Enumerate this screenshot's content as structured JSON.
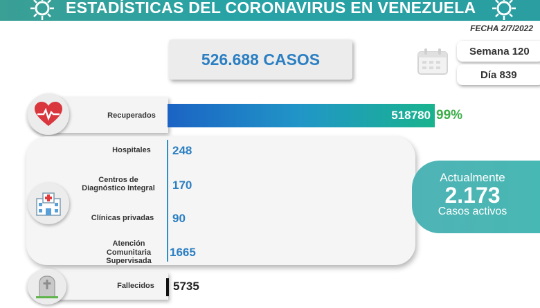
{
  "header": {
    "title": "ESTADÍSTICAS DEL CORONAVIRUS EN VENEZUELA",
    "fecha": "FECHA 2/7/2022",
    "virus_icon": "virus-icon"
  },
  "summary": {
    "casos": "526.688 CASOS",
    "semana": "Semana 120",
    "dia": "Día 839"
  },
  "recuperados": {
    "label": "Recuperados",
    "value": "518780",
    "percent": "99%",
    "fraction": 0.985
  },
  "hospitalizacion": {
    "items": [
      {
        "label": "Hospitales",
        "value": "248"
      },
      {
        "label": "Centros de Diagnóstico Integral",
        "value": "170"
      },
      {
        "label": "Clínicas privadas",
        "value": "90"
      },
      {
        "label": "Atención Comunitaria Supervisada",
        "value": "1665"
      }
    ]
  },
  "activos": {
    "line1": "Actualmente",
    "value": "2.173",
    "line2": "Casos activos"
  },
  "fallecidos": {
    "label": "Fallecidos",
    "value": "5735"
  },
  "colors": {
    "banner": "#27a3a6",
    "accent_blue": "#2b7fc2",
    "green": "#3cae4a",
    "active_bg": "#4fb3b5"
  }
}
